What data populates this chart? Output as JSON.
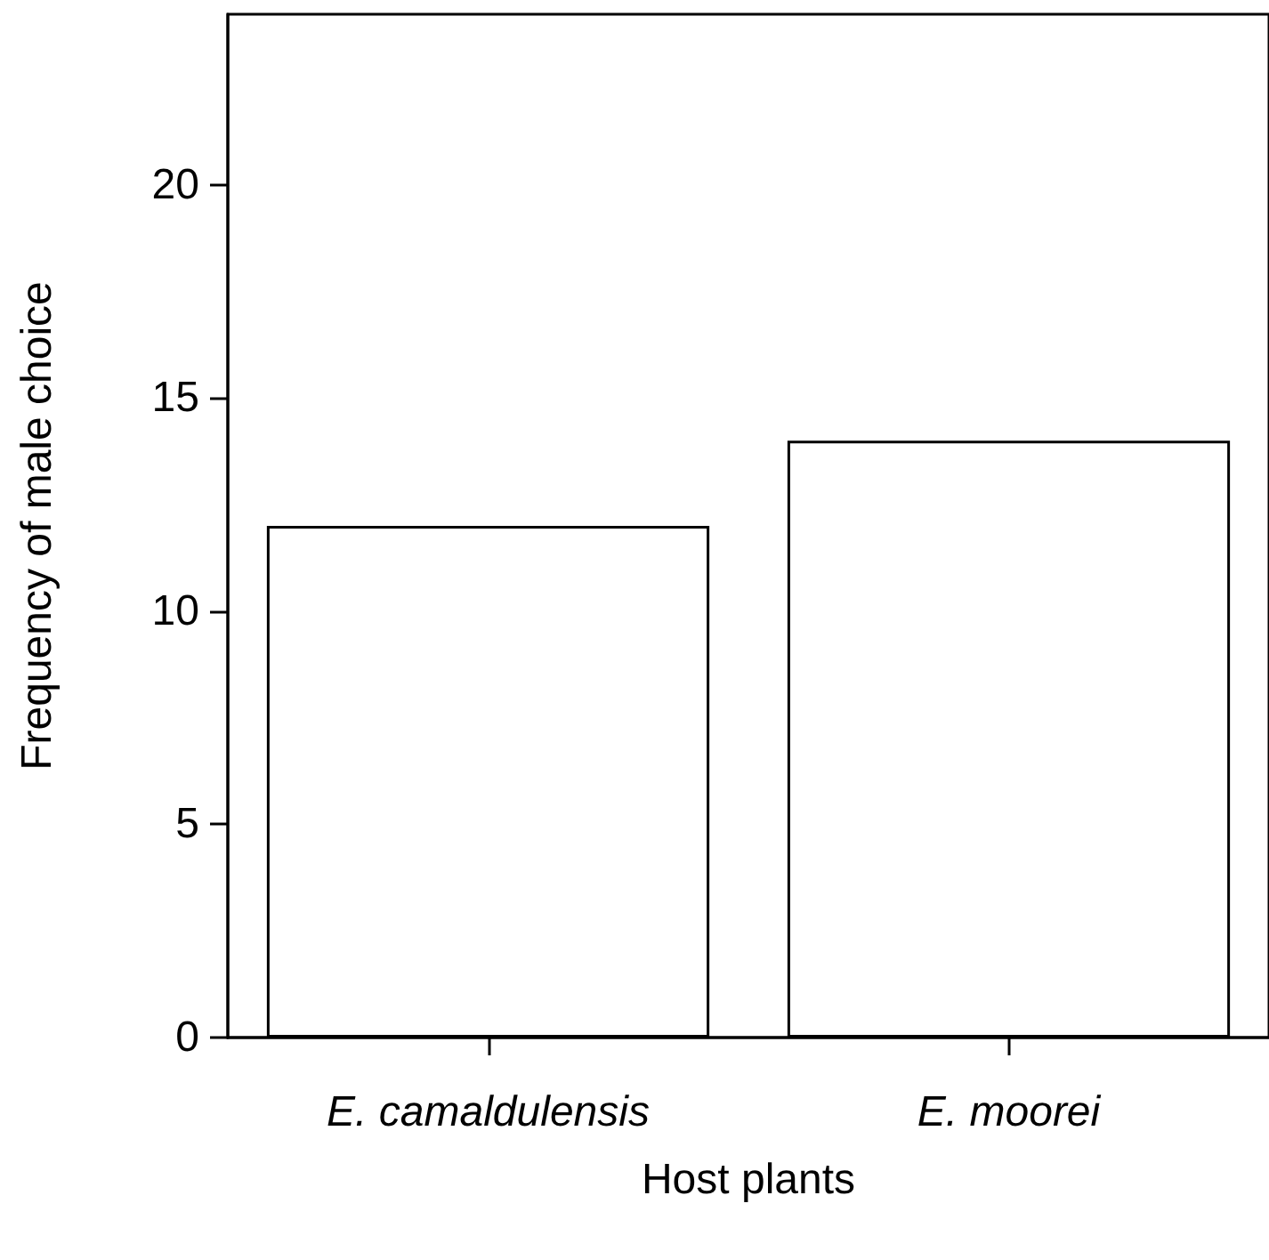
{
  "chart_data": {
    "type": "bar",
    "xlabel": "Host plants",
    "ylabel": "Frequency of male choice",
    "categories": [
      "E. camaldulensis",
      "E. moorei"
    ],
    "values": [
      12,
      14
    ],
    "color": "#ffffff",
    "ylim": [
      0,
      24
    ],
    "yticks": [
      0,
      5,
      10,
      15,
      20
    ],
    "grid": false
  }
}
